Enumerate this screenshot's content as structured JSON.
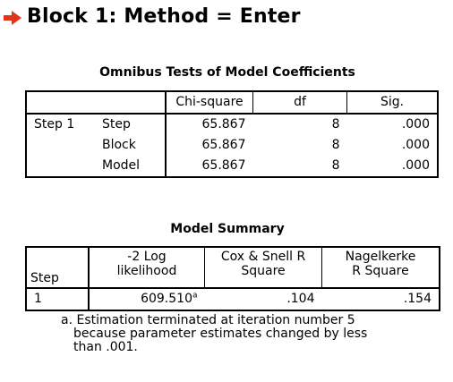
{
  "block": {
    "title": "Block 1: Method = Enter",
    "arrow_color": "#e0351a"
  },
  "omnibus": {
    "caption": "Omnibus Tests of Model Coefficients",
    "headers": {
      "chi": "Chi-square",
      "df": "df",
      "sig": "Sig."
    },
    "step_label": "Step 1",
    "rows": [
      {
        "label": "Step",
        "chi": "65.867",
        "df": "8",
        "sig": ".000"
      },
      {
        "label": "Block",
        "chi": "65.867",
        "df": "8",
        "sig": ".000"
      },
      {
        "label": "Model",
        "chi": "65.867",
        "df": "8",
        "sig": ".000"
      }
    ]
  },
  "model_summary": {
    "caption": "Model Summary",
    "headers": {
      "step": "Step",
      "loglik_1": "-2 Log",
      "loglik_2": "likelihood",
      "cox_1": "Cox & Snell R",
      "cox_2": "Square",
      "nag_1": "Nagelkerke",
      "nag_2": "R Square"
    },
    "row": {
      "step": "1",
      "loglik": "609.510",
      "loglik_sup": "a",
      "cox": ".104",
      "nag": ".154"
    },
    "footnote": {
      "line1": "a. Estimation terminated at iteration number 5",
      "line2": "because parameter estimates changed by less",
      "line3": "than .001."
    }
  }
}
